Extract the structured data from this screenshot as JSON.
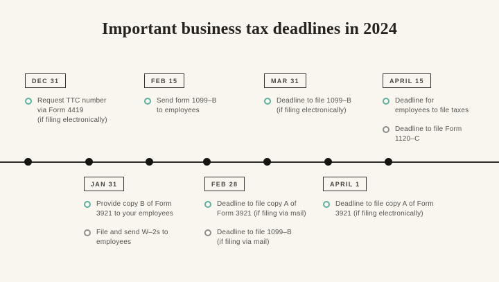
{
  "title": "Important business tax deadlines in 2024",
  "colors": {
    "background": "#f9f6ef",
    "timeline": "#2d2b28",
    "accent_teal": "#5fae9e",
    "marker_gray": "#8f8d88"
  },
  "timeline": {
    "dots": 7
  },
  "columns": [
    {
      "date": "DEC 31",
      "side": "top",
      "items": [
        {
          "text": "Request TTC number\nvia Form 4419\n(if filing electronically)",
          "marker": "teal"
        }
      ]
    },
    {
      "date": "JAN 31",
      "side": "bottom",
      "items": [
        {
          "text": "Provide copy B of Form\n3921 to your employees",
          "marker": "teal"
        },
        {
          "text": "File and send W–2s to\nemployees",
          "marker": "gray"
        }
      ]
    },
    {
      "date": "FEB 15",
      "side": "top",
      "items": [
        {
          "text": "Send form 1099–B\nto employees",
          "marker": "teal"
        }
      ]
    },
    {
      "date": "FEB 28",
      "side": "bottom",
      "items": [
        {
          "text": "Deadline to file copy A of\nForm 3921 (if filing via mail)",
          "marker": "teal"
        },
        {
          "text": "Deadline to file 1099–B\n(if filing via mail)",
          "marker": "gray"
        }
      ]
    },
    {
      "date": "MAR 31",
      "side": "top",
      "items": [
        {
          "text": "Deadline to file 1099–B\n(if filing electronically)",
          "marker": "teal"
        }
      ]
    },
    {
      "date": "APRIL 1",
      "side": "bottom",
      "items": [
        {
          "text": "Deadline to file copy A of Form\n3921 (if filing electronically)",
          "marker": "teal"
        }
      ]
    },
    {
      "date": "APRIL 15",
      "side": "top",
      "items": [
        {
          "text": "Deadline for\nemployees to file taxes",
          "marker": "teal"
        },
        {
          "text": "Deadline to file Form\n1120–C",
          "marker": "gray"
        }
      ]
    }
  ]
}
